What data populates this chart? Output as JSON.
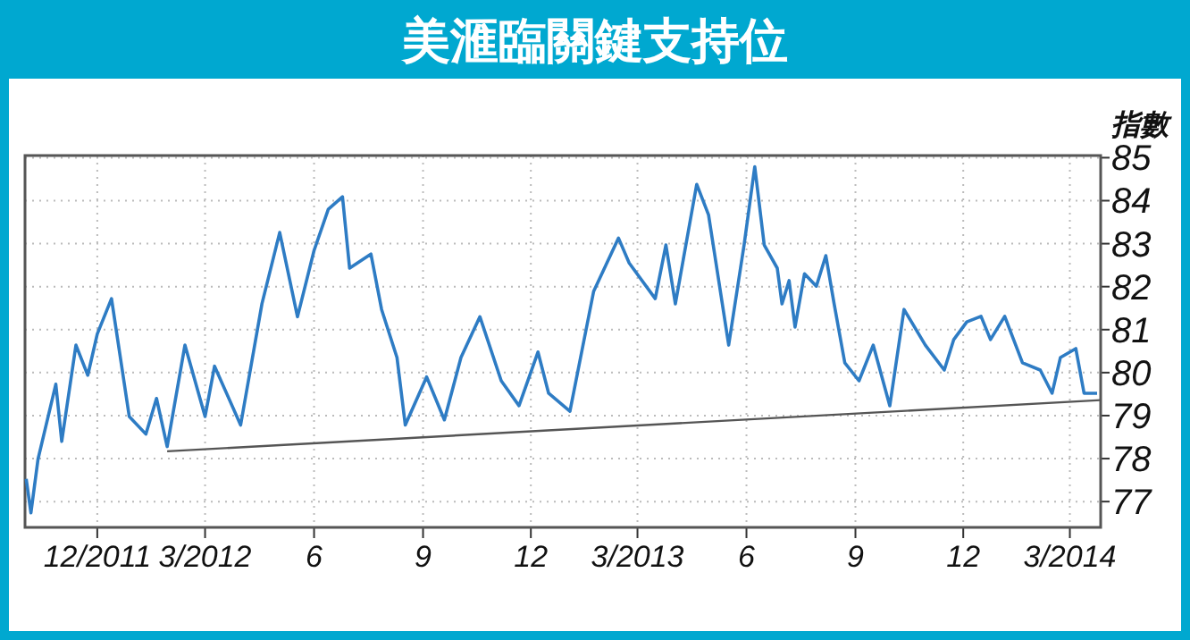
{
  "chart_data": {
    "type": "line",
    "title": "美滙臨關鍵支持位",
    "ylabel": "指數",
    "grid": true,
    "marker": "none",
    "xlim": [
      "2011-10-01",
      "2014-03-27"
    ],
    "ylim": [
      76.4,
      85.05
    ],
    "xticks": [
      {
        "value": "2011-12-01",
        "label": "12/2011"
      },
      {
        "value": "2012-03-01",
        "label": "3/2012"
      },
      {
        "value": "2012-06-01",
        "label": "6"
      },
      {
        "value": "2012-09-01",
        "label": "9"
      },
      {
        "value": "2012-12-01",
        "label": "12"
      },
      {
        "value": "2013-03-01",
        "label": "3/2013"
      },
      {
        "value": "2013-06-01",
        "label": "6"
      },
      {
        "value": "2013-09-01",
        "label": "9"
      },
      {
        "value": "2013-12-01",
        "label": "12"
      },
      {
        "value": "2014-03-01",
        "label": "3/2014"
      }
    ],
    "yticks": [
      77,
      78,
      79,
      80,
      81,
      82,
      83,
      84,
      85
    ],
    "series": [
      {
        "color": "#2e7cc4",
        "x": [
          "2011-10-02",
          "2011-10-06",
          "2011-10-12",
          "2011-10-27",
          "2011-11-01",
          "2011-11-13",
          "2011-11-23",
          "2011-12-01",
          "2011-12-13",
          "2011-12-28",
          "2012-01-11",
          "2012-01-20",
          "2012-01-29",
          "2012-02-13",
          "2012-03-01",
          "2012-03-09",
          "2012-03-31",
          "2012-04-18",
          "2012-05-03",
          "2012-05-18",
          "2012-06-01",
          "2012-06-13",
          "2012-06-25",
          "2012-07-01",
          "2012-07-19",
          "2012-07-28",
          "2012-08-10",
          "2012-08-17",
          "2012-09-04",
          "2012-09-19",
          "2012-10-03",
          "2012-10-19",
          "2012-11-06",
          "2012-11-21",
          "2012-12-07",
          "2012-12-16",
          "2013-01-03",
          "2013-01-23",
          "2013-02-13",
          "2013-02-22",
          "2013-03-16",
          "2013-03-25",
          "2013-04-02",
          "2013-04-20",
          "2013-04-30",
          "2013-05-17",
          "2013-05-30",
          "2013-06-08",
          "2013-06-16",
          "2013-06-27",
          "2013-07-01",
          "2013-07-07",
          "2013-07-12",
          "2013-07-20",
          "2013-07-30",
          "2013-08-07",
          "2013-08-14",
          "2013-08-23",
          "2013-09-04",
          "2013-09-16",
          "2013-09-30",
          "2013-10-12",
          "2013-10-30",
          "2013-11-15",
          "2013-11-23",
          "2013-12-04",
          "2013-12-16",
          "2013-12-24",
          "2014-01-05",
          "2014-01-20",
          "2014-02-04",
          "2014-02-14",
          "2014-02-21",
          "2014-03-06",
          "2014-03-13",
          "2014-03-24"
        ],
        "values": [
          77.53,
          76.74,
          77.99,
          79.73,
          78.4,
          80.64,
          79.94,
          80.9,
          81.72,
          78.98,
          78.57,
          79.4,
          78.28,
          80.64,
          78.98,
          80.15,
          78.78,
          81.6,
          83.26,
          81.3,
          82.84,
          83.8,
          84.09,
          82.43,
          82.76,
          81.47,
          80.35,
          78.78,
          79.9,
          78.9,
          80.35,
          81.3,
          79.81,
          79.23,
          80.48,
          79.52,
          79.1,
          81.89,
          83.13,
          82.55,
          81.72,
          82.97,
          81.6,
          84.38,
          83.67,
          80.64,
          82.97,
          84.79,
          82.97,
          82.43,
          81.6,
          82.14,
          81.06,
          82.3,
          82.01,
          82.72,
          81.6,
          80.23,
          79.81,
          80.64,
          79.23,
          81.47,
          80.64,
          80.06,
          80.77,
          81.18,
          81.31,
          80.77,
          81.31,
          80.23,
          80.06,
          79.52,
          80.35,
          80.56,
          79.52,
          79.52
        ]
      },
      {
        "color": "#555555",
        "x": [
          "2012-01-29",
          "2014-03-27"
        ],
        "values": [
          78.17,
          79.36
        ]
      }
    ]
  }
}
